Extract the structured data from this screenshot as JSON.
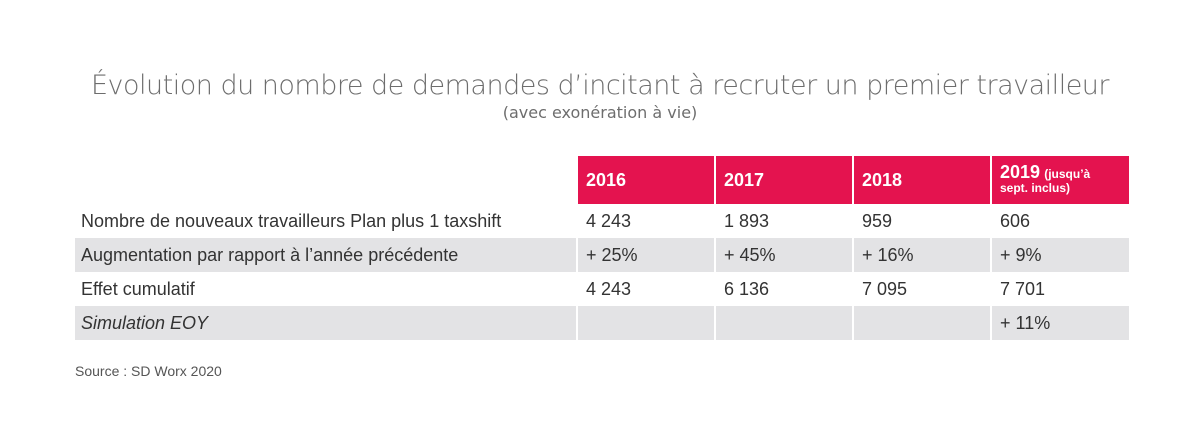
{
  "title": "Évolution du nombre de demandes d’incitant à recruter un premier travailleur",
  "subtitle": "(avec exonération à vie)",
  "headers": {
    "y2016": "2016",
    "y2017": "2017",
    "y2018": "2018",
    "y2019_main": "2019",
    "y2019_note_1": "(jusqu’à",
    "y2019_note_2": "sept. inclus)"
  },
  "rows": [
    {
      "label": "Nombre de nouveaux travailleurs Plan plus 1 taxshift",
      "v2016": "4 243",
      "v2017": "1 893",
      "v2018": "959",
      "v2019": "606"
    },
    {
      "label": "Augmentation par rapport à l’année précédente",
      "v2016": "+ 25%",
      "v2017": "+ 45%",
      "v2018": "+ 16%",
      "v2019": "+ 9%"
    },
    {
      "label": "Effet cumulatif",
      "v2016": "4 243",
      "v2017": "6 136",
      "v2018": "7 095",
      "v2019": "7 701"
    },
    {
      "label": "Simulation EOY",
      "v2016": "",
      "v2017": "",
      "v2018": "",
      "v2019": "+ 11%"
    }
  ],
  "source": "Source : SD Worx 2020",
  "colors": {
    "header_bg": "#e4134f",
    "header_text": "#ffffff",
    "stripe": "#e3e3e5",
    "title": "#6d6d6d"
  }
}
